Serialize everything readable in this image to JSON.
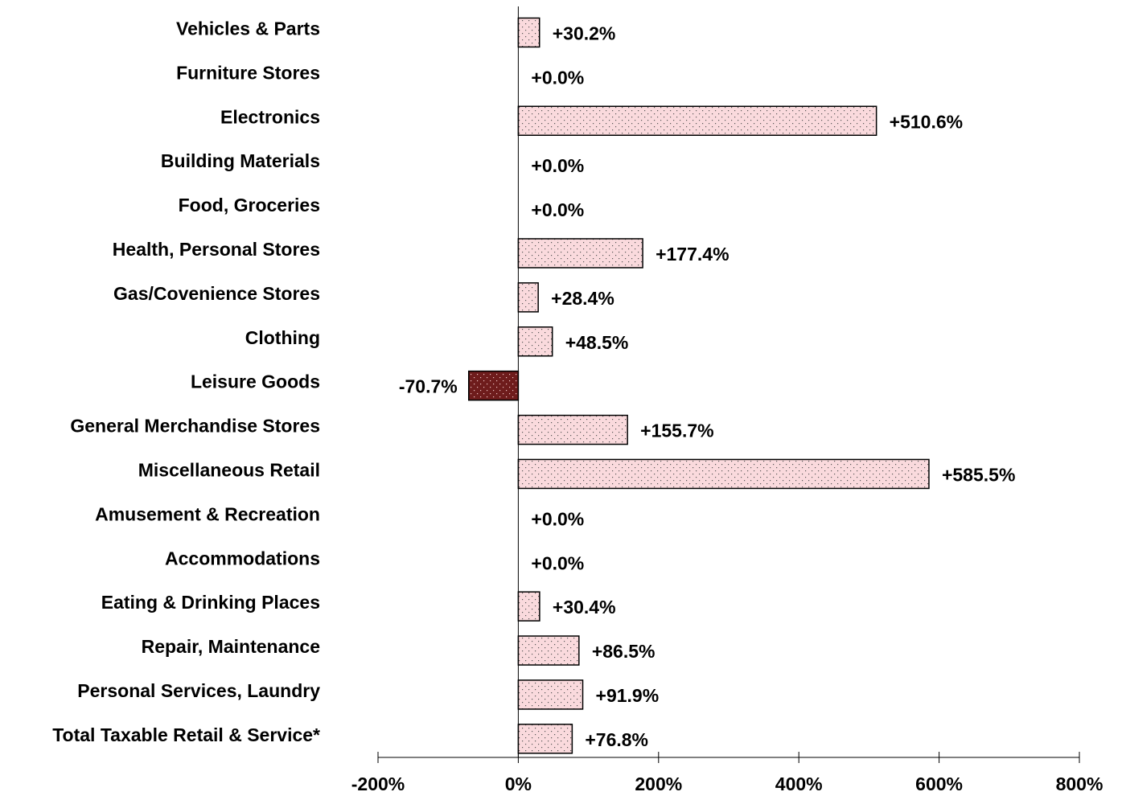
{
  "chart_data": {
    "type": "bar",
    "orientation": "horizontal",
    "categories": [
      "Vehicles & Parts",
      "Furniture Stores",
      "Electronics",
      "Building Materials",
      "Food, Groceries",
      "Health, Personal Stores",
      "Gas/Covenience Stores",
      "Clothing",
      "Leisure Goods",
      "General Merchandise Stores",
      "Miscellaneous Retail",
      "Amusement & Recreation",
      "Accommodations",
      "Eating & Drinking Places",
      "Repair, Maintenance",
      "Personal Services, Laundry",
      "Total Taxable Retail & Service*"
    ],
    "values": [
      30.2,
      0.0,
      510.6,
      0.0,
      0.0,
      177.4,
      28.4,
      48.5,
      -70.7,
      155.7,
      585.5,
      0.0,
      0.0,
      30.4,
      86.5,
      91.9,
      76.8
    ],
    "value_labels": [
      "+30.2%",
      "+0.0%",
      "+510.6%",
      "+0.0%",
      "+0.0%",
      "+177.4%",
      "+28.4%",
      "+48.5%",
      "-70.7%",
      "+155.7%",
      "+585.5%",
      "+0.0%",
      "+0.0%",
      "+30.4%",
      "+86.5%",
      "+91.9%",
      "+76.8%"
    ],
    "color": "#fadadd",
    "negative_color": "#6e1c1c",
    "xlim": [
      -200,
      800
    ],
    "xticks": [
      {
        "value": -200,
        "label": "-200%"
      },
      {
        "value": 0,
        "label": "0%"
      },
      {
        "value": 200,
        "label": "200%"
      },
      {
        "value": 400,
        "label": "400%"
      },
      {
        "value": 600,
        "label": "600%"
      },
      {
        "value": 800,
        "label": "800%"
      }
    ]
  }
}
